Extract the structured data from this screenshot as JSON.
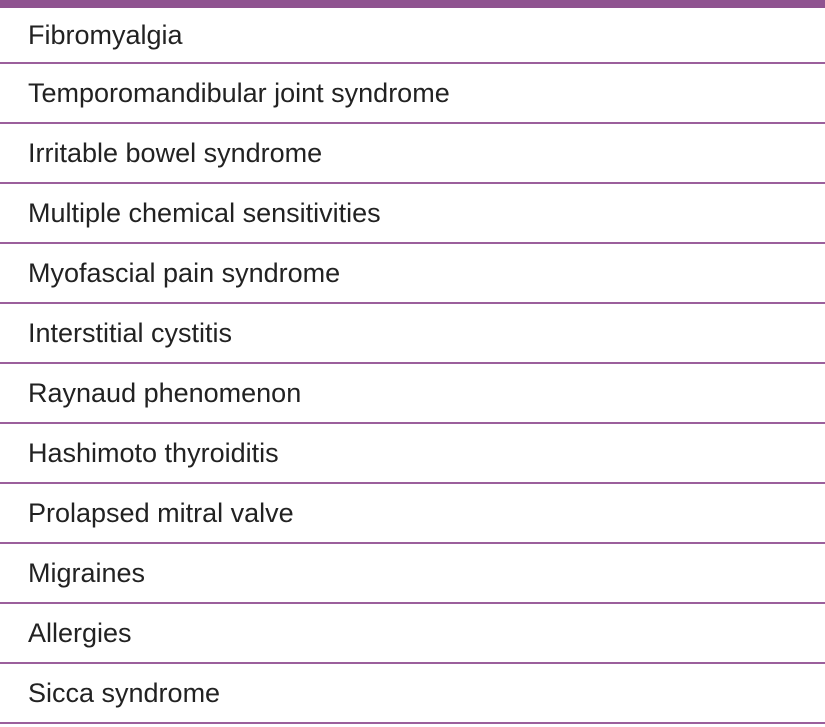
{
  "colors": {
    "accent": "#8f5390",
    "divider": "#9b5f9c"
  },
  "rows": [
    "Fibromyalgia",
    "Temporomandibular joint syndrome",
    "Irritable bowel syndrome",
    "Multiple chemical sensitivities",
    "Myofascial pain syndrome",
    "Interstitial cystitis",
    "Raynaud phenomenon",
    "Hashimoto thyroiditis",
    "Prolapsed mitral valve",
    "Migraines",
    "Allergies",
    "Sicca syndrome"
  ]
}
